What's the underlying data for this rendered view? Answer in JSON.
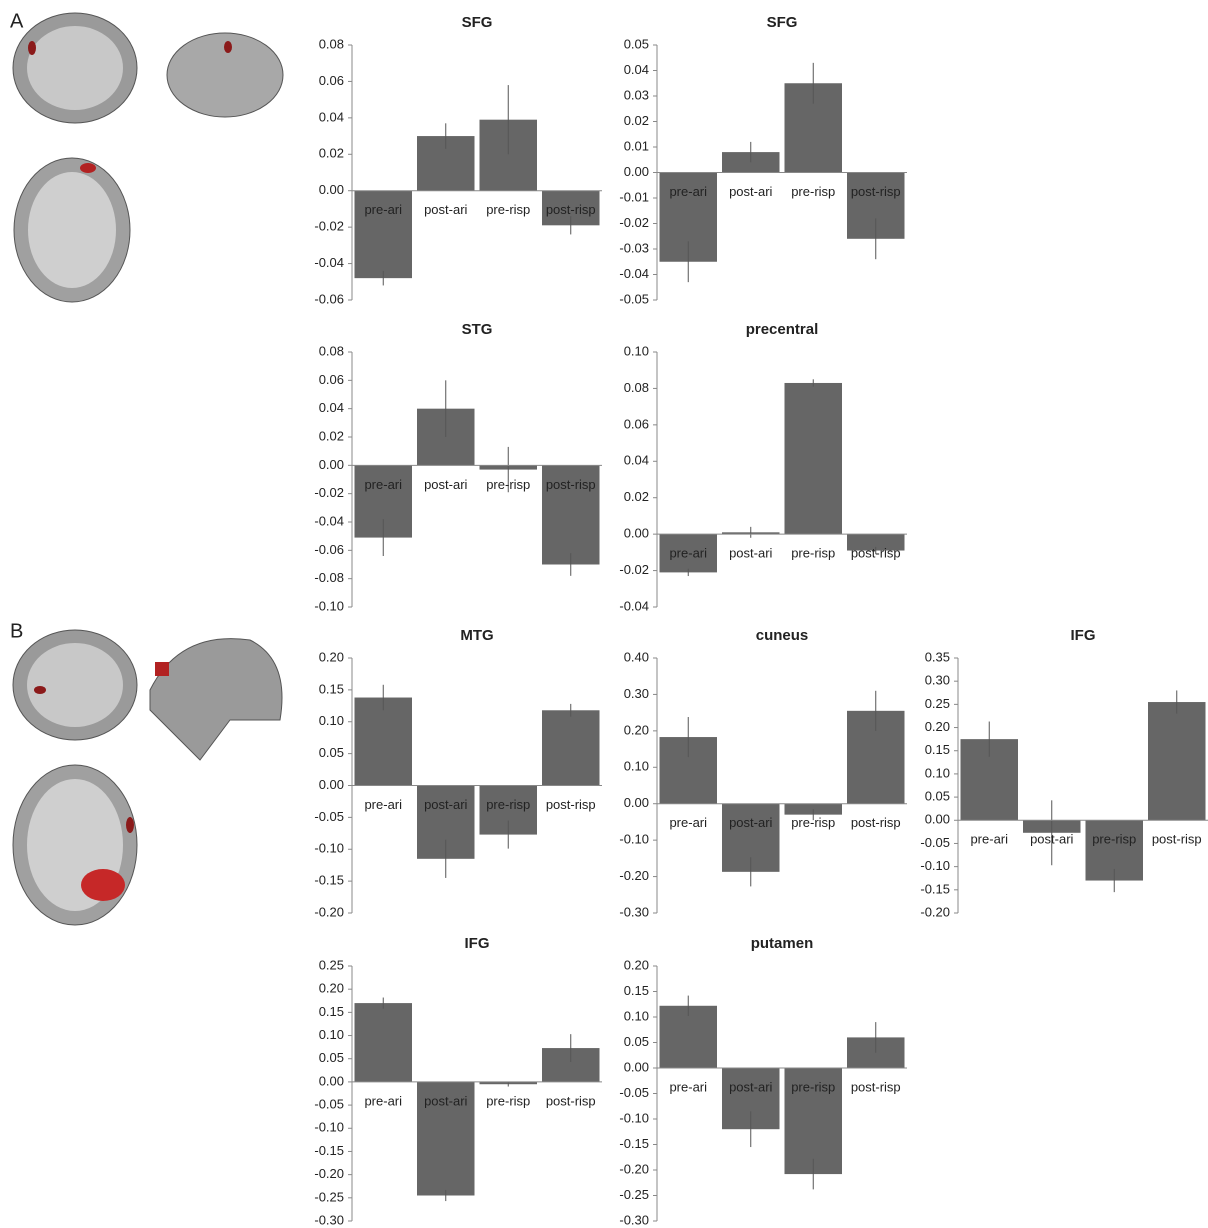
{
  "panel_labels": [
    "A",
    "B"
  ],
  "chart_data": [
    {
      "type": "bar",
      "title": "SFG",
      "categories": [
        "pre-ari",
        "post-ari",
        "pre-risp",
        "post-risp"
      ],
      "values": [
        -0.048,
        0.03,
        0.039,
        -0.019
      ],
      "errors": [
        0.004,
        0.007,
        0.019,
        0.005
      ],
      "color": "#666666",
      "ylim": [
        -0.06,
        0.08
      ],
      "yticks": [
        -0.06,
        -0.04,
        -0.02,
        {
          "value": 0,
          "label": "0.00"
        },
        0.02,
        0.04,
        0.06,
        0.08
      ]
    },
    {
      "type": "bar",
      "title": "SFG",
      "categories": [
        "pre-ari",
        "post-ari",
        "pre-risp",
        "post-risp"
      ],
      "values": [
        -0.035,
        0.008,
        0.035,
        -0.026
      ],
      "errors": [
        0.008,
        0.004,
        0.008,
        0.008
      ],
      "color": "#666666",
      "ylim": [
        -0.05,
        0.05
      ],
      "yticks": [
        -0.05,
        -0.04,
        -0.03,
        -0.02,
        -0.01,
        {
          "value": 0,
          "label": "0.00"
        },
        0.01,
        0.02,
        0.03,
        0.04,
        0.05
      ]
    },
    {
      "type": "bar",
      "title": "STG",
      "categories": [
        "pre-ari",
        "post-ari",
        "pre-risp",
        "post-risp"
      ],
      "values": [
        -0.051,
        0.04,
        -0.003,
        -0.07
      ],
      "errors": [
        0.013,
        0.02,
        0.016,
        0.008
      ],
      "color": "#666666",
      "ylim": [
        -0.1,
        0.08
      ],
      "yticks": [
        {
          "value": -0.1,
          "label": "-0.10"
        },
        -0.08,
        -0.06,
        -0.04,
        -0.02,
        {
          "value": 0,
          "label": "0.00"
        },
        0.02,
        0.04,
        0.06,
        0.08
      ]
    },
    {
      "type": "bar",
      "title": "precentral",
      "categories": [
        "pre-ari",
        "post-ari",
        "pre-risp",
        "post-risp"
      ],
      "values": [
        -0.021,
        0.001,
        0.083,
        -0.009
      ],
      "errors": [
        0.002,
        0.003,
        0.002,
        0.002
      ],
      "color": "#666666",
      "ylim": [
        -0.04,
        0.1
      ],
      "yticks": [
        -0.04,
        -0.02,
        {
          "value": 0,
          "label": "0.00"
        },
        0.02,
        0.04,
        0.06,
        0.08,
        {
          "value": 0.1,
          "label": "0.10"
        }
      ]
    },
    {
      "type": "bar",
      "title": "MTG",
      "categories": [
        "pre-ari",
        "post-ari",
        "pre-risp",
        "post-risp"
      ],
      "values": [
        0.138,
        -0.115,
        -0.077,
        0.118
      ],
      "errors": [
        0.02,
        0.03,
        0.022,
        0.01
      ],
      "color": "#666666",
      "ylim": [
        -0.2,
        0.2
      ],
      "yticks": [
        {
          "value": -0.2,
          "label": "-0.20"
        },
        -0.15,
        {
          "value": -0.1,
          "label": "-0.10"
        },
        -0.05,
        {
          "value": 0,
          "label": "0.00"
        },
        0.05,
        {
          "value": 0.1,
          "label": "0.10"
        },
        0.15,
        {
          "value": 0.2,
          "label": "0.20"
        }
      ]
    },
    {
      "type": "bar",
      "title": "cuneus",
      "categories": [
        "pre-ari",
        "post-ari",
        "pre-risp",
        "post-risp"
      ],
      "values": [
        0.183,
        -0.187,
        -0.03,
        0.255
      ],
      "errors": [
        0.055,
        0.04,
        0.015,
        0.055
      ],
      "color": "#666666",
      "ylim": [
        -0.3,
        0.4
      ],
      "yticks": [
        {
          "value": -0.3,
          "label": "-0.30"
        },
        {
          "value": -0.2,
          "label": "-0.20"
        },
        {
          "value": -0.1,
          "label": "-0.10"
        },
        {
          "value": 0,
          "label": "0.00"
        },
        {
          "value": 0.1,
          "label": "0.10"
        },
        {
          "value": 0.2,
          "label": "0.20"
        },
        {
          "value": 0.3,
          "label": "0.30"
        },
        {
          "value": 0.4,
          "label": "0.40"
        }
      ]
    },
    {
      "type": "bar",
      "title": "IFG",
      "categories": [
        "pre-ari",
        "post-ari",
        "pre-risp",
        "post-risp"
      ],
      "values": [
        0.175,
        -0.027,
        -0.13,
        0.255
      ],
      "errors": [
        0.038,
        0.07,
        0.025,
        0.025
      ],
      "color": "#666666",
      "ylim": [
        -0.2,
        0.35
      ],
      "yticks": [
        {
          "value": -0.2,
          "label": "-0.20"
        },
        -0.15,
        {
          "value": -0.1,
          "label": "-0.10"
        },
        -0.05,
        {
          "value": 0,
          "label": "0.00"
        },
        0.05,
        {
          "value": 0.1,
          "label": "0.10"
        },
        0.15,
        {
          "value": 0.2,
          "label": "0.20"
        },
        0.25,
        {
          "value": 0.3,
          "label": "0.30"
        },
        0.35
      ]
    },
    {
      "type": "bar",
      "title": "IFG",
      "categories": [
        "pre-ari",
        "post-ari",
        "pre-risp",
        "post-risp"
      ],
      "values": [
        0.17,
        -0.245,
        -0.005,
        0.073
      ],
      "errors": [
        0.012,
        0.012,
        0.005,
        0.03
      ],
      "color": "#666666",
      "ylim": [
        -0.3,
        0.25
      ],
      "yticks": [
        {
          "value": -0.3,
          "label": "-0.30"
        },
        -0.25,
        {
          "value": -0.2,
          "label": "-0.20"
        },
        -0.15,
        {
          "value": -0.1,
          "label": "-0.10"
        },
        -0.05,
        {
          "value": 0,
          "label": "0.00"
        },
        0.05,
        {
          "value": 0.1,
          "label": "0.10"
        },
        0.15,
        {
          "value": 0.2,
          "label": "0.20"
        },
        0.25
      ]
    },
    {
      "type": "bar",
      "title": "putamen",
      "categories": [
        "pre-ari",
        "post-ari",
        "pre-risp",
        "post-risp"
      ],
      "values": [
        0.122,
        -0.12,
        -0.208,
        0.06
      ],
      "errors": [
        0.02,
        0.035,
        0.03,
        0.03
      ],
      "color": "#666666",
      "ylim": [
        -0.3,
        0.2
      ],
      "yticks": [
        {
          "value": -0.3,
          "label": "-0.30"
        },
        -0.25,
        {
          "value": -0.2,
          "label": "-0.20"
        },
        -0.15,
        {
          "value": -0.1,
          "label": "-0.10"
        },
        -0.05,
        {
          "value": 0,
          "label": "0.00"
        },
        0.05,
        {
          "value": 0.1,
          "label": "0.10"
        },
        0.15,
        {
          "value": 0.2,
          "label": "0.20"
        }
      ]
    }
  ]
}
